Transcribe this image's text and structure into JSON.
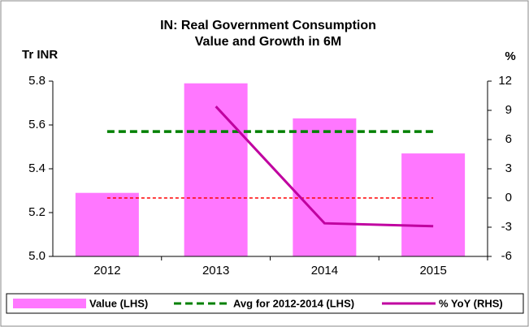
{
  "chart_data": {
    "type": "bar",
    "title": "IN: Real Government Consumption",
    "subtitle": "Value and Growth in 6M",
    "y_label": "Tr INR",
    "y2_label": "%",
    "categories": [
      "2012",
      "2013",
      "2014",
      "2015"
    ],
    "series": [
      {
        "name": "Value (LHS)",
        "type": "bar",
        "color": "#ff77ff",
        "values": [
          5.29,
          5.79,
          5.63,
          5.47
        ]
      },
      {
        "name": "Avg for 2012-2014 (LHS)",
        "type": "dashed",
        "color": "#008000",
        "values": [
          5.57,
          5.57,
          5.57,
          5.57
        ]
      },
      {
        "name": "% YoY (RHS)",
        "type": "line",
        "axis": "y2",
        "color": "#c000a0",
        "values": [
          null,
          9.4,
          -2.6,
          -2.9
        ]
      }
    ],
    "reference_line": {
      "axis": "y2",
      "value": 0,
      "color": "#ff0000"
    },
    "ylim": [
      5.0,
      5.8
    ],
    "yticks": [
      {
        "value": 5.0,
        "label": "5.0"
      },
      5.2,
      5.4,
      5.6,
      5.8
    ],
    "y2lim": [
      -6,
      12
    ],
    "y2ticks": [
      -6,
      -3,
      0,
      3,
      6,
      9,
      12
    ],
    "legend": "bottom"
  }
}
